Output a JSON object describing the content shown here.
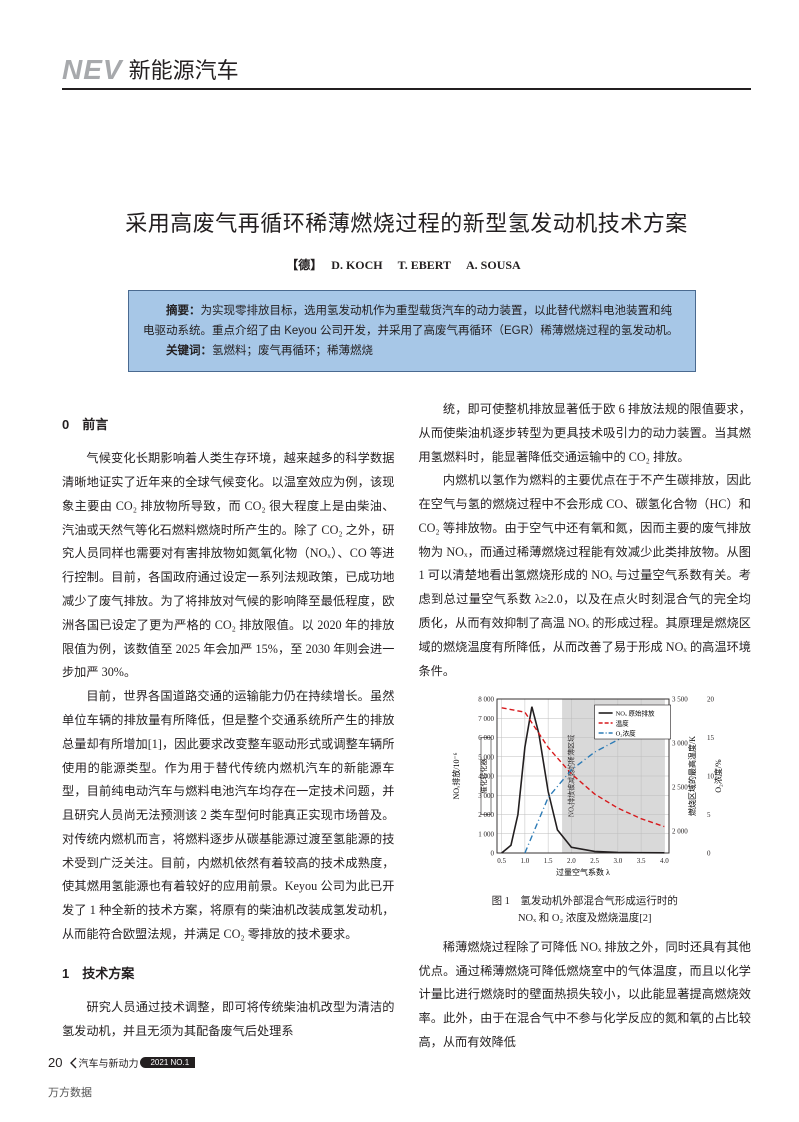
{
  "header": {
    "en": "NEV",
    "cn": "新能源汽车"
  },
  "title": "采用高废气再循环稀薄燃烧过程的新型氢发动机技术方案",
  "authors": {
    "nation": "【德】",
    "names": [
      "D. KOCH",
      "T. EBERT",
      "A. SOUSA"
    ]
  },
  "abstract": {
    "label": "摘要：",
    "body": "为实现零排放目标，选用氢发动机作为重型载货汽车的动力装置，以此替代燃料电池装置和纯电驱动系统。重点介绍了由 Keyou 公司开发，并采用了高废气再循环（EGR）稀薄燃烧过程的氢发动机。",
    "kw_label": "关键词：",
    "kw": "氢燃料；废气再循环；稀薄燃烧"
  },
  "sections": {
    "s0_title": "0　前言",
    "s0_p1": "气候变化长期影响着人类生存环境，越来越多的科学数据清晰地证实了近年来的全球气候变化。以温室效应为例，该现象主要由 CO₂ 排放物所导致，而 CO₂ 很大程度上是由柴油、汽油或天然气等化石燃料燃烧时所产生的。除了 CO₂ 之外，研究人员同样也需要对有害排放物如氮氧化物（NOₓ）、CO 等进行控制。目前，各国政府通过设定一系列法规政策，已成功地减少了废气排放。为了将排放对气候的影响降至最低程度，欧洲各国已设定了更为严格的 CO₂ 排放限值。以 2020 年的排放限值为例，该数值至 2025 年会加严 15%，至 2030 年则会进一步加严 30%。",
    "s0_p2": "目前，世界各国道路交通的运输能力仍在持续增长。虽然单位车辆的排放量有所降低，但是整个交通系统所产生的排放总量却有所增加[1]，因此要求改变整车驱动形式或调整车辆所使用的能源类型。作为用于替代传统内燃机汽车的新能源车型，目前纯电动汽车与燃料电池汽车均存在一定技术问题，并且研究人员尚无法预测该 2 类车型何时能真正实现市场普及。对传统内燃机而言，将燃料逐步从碳基能源过渡至氢能源的技术受到广泛关注。目前，内燃机依然有着较高的技术成熟度，使其燃用氢能源也有着较好的应用前景。Keyou 公司为此已开发了 1 种全新的技术方案，将原有的柴油机改装成氢发动机，从而能符合欧盟法规，并满足 CO₂ 零排放的技术要求。",
    "s1_title": "1　技术方案",
    "s1_p1": "研究人员通过技术调整，即可将传统柴油机改型为清洁的氢发动机，并且无须为其配备废气后处理系",
    "s1_p2": "统，即可使整机排放显著低于欧 6 排放法规的限值要求，从而使柴油机逐步转型为更具技术吸引力的动力装置。当其燃用氢燃料时，能显著降低交通运输中的 CO₂ 排放。",
    "s1_p3": "内燃机以氢作为燃料的主要优点在于不产生碳排放，因此在空气与氢的燃烧过程中不会形成 CO、碳氢化合物（HC）和 CO₂ 等排放物。由于空气中还有氧和氮，因而主要的废气排放物为 NOₓ，而通过稀薄燃烧过程能有效减少此类排放物。从图 1 可以清楚地看出氢燃烧形成的 NOₓ 与过量空气系数有关。考虑到总过量空气系数 λ≥2.0，以及在点火时刻混合气的完全均质化，从而有效抑制了高温 NOₓ 的形成过程。其原理是燃烧区域的燃烧温度有所降低，从而改善了易于形成 NOₓ 的高温环境条件。",
    "s1_p4": "稀薄燃烧过程除了可降低 NOₓ 排放之外，同时还具有其他优点。通过稀薄燃烧可降低燃烧室中的气体温度，而且以化学计量比进行燃烧时的壁面热损失较小，以此能显著提高燃烧效率。此外，由于在混合气中不参与化学反应的氮和氧的占比较高，从而有效降低"
  },
  "figure1": {
    "caption_l1": "图 1　氢发动机外部混合气形成运行时的",
    "caption_l2": "NOₓ 和 O₂ 浓度及燃烧温度[2]",
    "axes": {
      "x_label": "过量空气系数 λ",
      "y_left_label": "NOₓ排放/10⁻⁶",
      "y_right1_label": "燃烧区域的最高温度/K",
      "y_right2_label": "O₂浓度/%",
      "x_ticks": [
        "0.5",
        "1.0",
        "1.5",
        "2.0",
        "2.5",
        "3.0",
        "3.5",
        "4.0"
      ],
      "y_left_ticks": [
        "0",
        "1 000",
        "2 000",
        "3 000",
        "4 000",
        "5 000",
        "6 000",
        "7 000",
        "8 000"
      ],
      "y_right1_ticks": [
        "2 000",
        "2 500",
        "3 000",
        "3 500"
      ],
      "y_right2_ticks": [
        "0",
        "5",
        "10",
        "15",
        "20"
      ],
      "xlim": [
        0.4,
        4.1
      ],
      "ylim_left": [
        0,
        8000
      ],
      "ylim_r1": [
        1750,
        3500
      ],
      "ylim_r2": [
        0,
        20
      ]
    },
    "legend": {
      "nox": "NOₓ 原始排放",
      "temp": "温度",
      "o2": "O₂浓度"
    },
    "colors": {
      "nox": "#231f20",
      "temp": "#d7191c",
      "o2": "#2c7bb6",
      "grid": "#bdbdbd",
      "axis": "#231f20",
      "shade": "#d9d9d9",
      "bg": "#ffffff"
    },
    "series": {
      "nox_x": [
        0.5,
        0.7,
        0.85,
        1.0,
        1.15,
        1.3,
        1.5,
        1.7,
        2.0,
        2.5,
        3.0,
        3.5,
        4.0
      ],
      "nox_y": [
        0,
        400,
        2000,
        5500,
        7600,
        6200,
        3200,
        1200,
        300,
        80,
        30,
        15,
        10
      ],
      "temp_x": [
        0.5,
        1.0,
        1.5,
        2.0,
        2.5,
        3.0,
        3.5,
        4.0
      ],
      "temp_y": [
        3400,
        3350,
        2950,
        2650,
        2420,
        2260,
        2140,
        2050
      ],
      "o2_x": [
        1.0,
        1.5,
        2.0,
        2.5,
        3.0,
        3.5,
        4.0
      ],
      "o2_y": [
        0,
        7.2,
        10.8,
        13.1,
        14.7,
        15.9,
        16.8
      ]
    },
    "left_band_label": "催化转化器",
    "shade_label": "NOₓ排放被减弱的稀薄区域"
  },
  "footer": {
    "page": "20",
    "journal": "汽车与新动力",
    "issue": "2021 NO.1"
  },
  "watermark": "万方数据"
}
